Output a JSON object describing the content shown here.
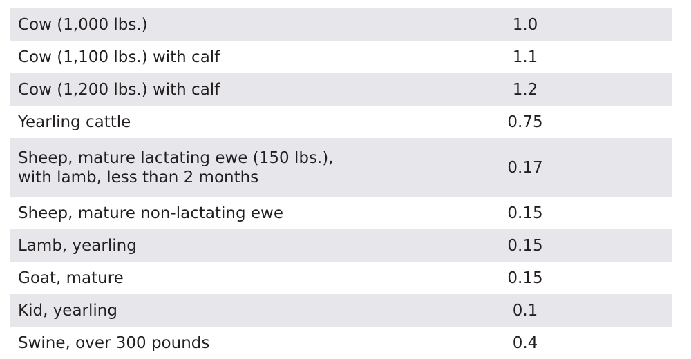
{
  "table": {
    "rows": [
      [
        "Cow (1,000 lbs.)",
        "1.0"
      ],
      [
        "Cow (1,100 lbs.) with calf",
        "1.1"
      ],
      [
        "Cow (1,200 lbs.) with calf",
        "1.2"
      ],
      [
        "Yearling cattle",
        "0.75"
      ],
      [
        [
          "Sheep, mature lactating ewe (150 lbs.),",
          "with lamb, less than 2 months"
        ],
        "0.17"
      ],
      [
        "Sheep, mature non-lactating ewe",
        "0.15"
      ],
      [
        "Lamb, yearling",
        "0.15"
      ],
      [
        "Goat, mature",
        "0.15"
      ],
      [
        "Kid, yearling",
        "0.1"
      ],
      [
        "Swine, over 300 pounds",
        "0.4"
      ]
    ]
  }
}
